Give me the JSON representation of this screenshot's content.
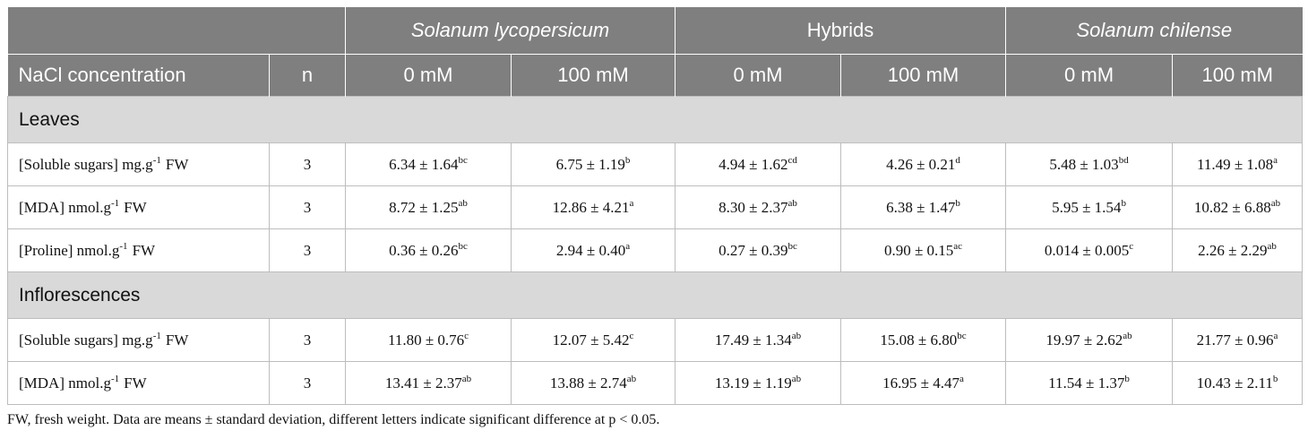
{
  "table": {
    "header": {
      "groups": [
        {
          "text": "Solanum lycopersicum",
          "italic": true
        },
        {
          "text": "Hybrids",
          "italic": false
        },
        {
          "text": "Solanum chilense",
          "italic": true
        }
      ],
      "label": "NaCl concentration",
      "n": "n",
      "concentrations": [
        "0 mM",
        "100 mM",
        "0 mM",
        "100 mM",
        "0 mM",
        "100 mM"
      ]
    },
    "sections": [
      {
        "title": "Leaves",
        "rows": [
          {
            "label": {
              "text": "[Soluble sugars] mg.g",
              "sup": "-1",
              "unit": "FW"
            },
            "n": "3",
            "cells": [
              {
                "value": "6.34 ± 1.64",
                "sup": "bc"
              },
              {
                "value": "6.75 ± 1.19",
                "sup": "b"
              },
              {
                "value": "4.94 ± 1.62",
                "sup": "cd"
              },
              {
                "value": "4.26 ± 0.21",
                "sup": "d"
              },
              {
                "value": "5.48 ± 1.03",
                "sup": "bd"
              },
              {
                "value": "11.49 ± 1.08",
                "sup": "a"
              }
            ]
          },
          {
            "label": {
              "text": "[MDA] nmol.g",
              "sup": "-1",
              "unit": "FW"
            },
            "n": "3",
            "cells": [
              {
                "value": "8.72 ± 1.25",
                "sup": "ab"
              },
              {
                "value": "12.86 ± 4.21",
                "sup": "a"
              },
              {
                "value": "8.30 ± 2.37",
                "sup": "ab"
              },
              {
                "value": "6.38 ± 1.47",
                "sup": "b"
              },
              {
                "value": "5.95 ± 1.54",
                "sup": "b"
              },
              {
                "value": "10.82 ± 6.88",
                "sup": "ab"
              }
            ]
          },
          {
            "label": {
              "text": "[Proline] nmol.g",
              "sup": "-1",
              "unit": "FW"
            },
            "n": "3",
            "cells": [
              {
                "value": "0.36 ± 0.26",
                "sup": "bc"
              },
              {
                "value": "2.94 ± 0.40",
                "sup": "a"
              },
              {
                "value": "0.27 ± 0.39",
                "sup": "bc"
              },
              {
                "value": "0.90 ± 0.15",
                "sup": "ac"
              },
              {
                "value": "0.014 ± 0.005",
                "sup": "c"
              },
              {
                "value": "2.26 ± 2.29",
                "sup": "ab"
              }
            ]
          }
        ]
      },
      {
        "title": "Inflorescences",
        "rows": [
          {
            "label": {
              "text": "[Soluble sugars] mg.g",
              "sup": "-1",
              "unit": "FW"
            },
            "n": "3",
            "cells": [
              {
                "value": "11.80 ± 0.76",
                "sup": "c"
              },
              {
                "value": "12.07 ± 5.42",
                "sup": "c"
              },
              {
                "value": "17.49 ± 1.34",
                "sup": "ab"
              },
              {
                "value": "15.08 ± 6.80",
                "sup": "bc"
              },
              {
                "value": "19.97 ± 2.62",
                "sup": "ab"
              },
              {
                "value": "21.77 ± 0.96",
                "sup": "a"
              }
            ]
          },
          {
            "label": {
              "text": "[MDA] nmol.g",
              "sup": "-1",
              "unit": "FW"
            },
            "n": "3",
            "cells": [
              {
                "value": "13.41 ± 2.37",
                "sup": "ab"
              },
              {
                "value": "13.88 ± 2.74",
                "sup": "ab"
              },
              {
                "value": "13.19 ± 1.19",
                "sup": "ab"
              },
              {
                "value": "16.95 ± 4.47",
                "sup": "a"
              },
              {
                "value": "11.54 ± 1.37",
                "sup": "b"
              },
              {
                "value": "10.43 ± 2.11",
                "sup": "b"
              }
            ]
          }
        ]
      }
    ],
    "footnote": "FW, fresh weight. Data are means ± standard deviation, different letters indicate significant difference at p < 0.05."
  }
}
